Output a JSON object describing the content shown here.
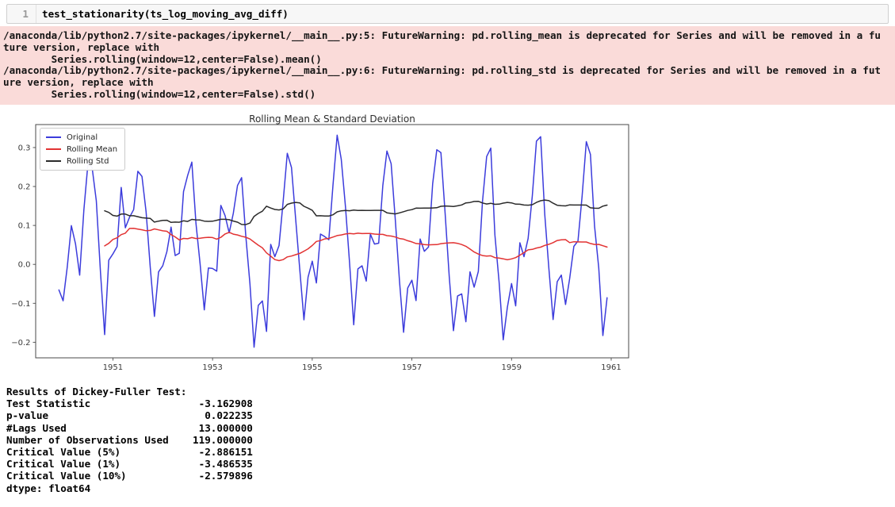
{
  "notebook": {
    "cell": {
      "line_number": "1",
      "code": "test_stationarity(ts_log_moving_avg_diff)"
    },
    "stderr_lines": [
      "/anaconda/lib/python2.7/site-packages/ipykernel/__main__.py:5: FutureWarning: pd.rolling_mean is deprecated for Series and will be removed in a fu",
      "ture version, replace with",
      "        Series.rolling(window=12,center=False).mean()",
      "/anaconda/lib/python2.7/site-packages/ipykernel/__main__.py:6: FutureWarning: pd.rolling_std is deprecated for Series and will be removed in a fut",
      "ure version, replace with",
      "        Series.rolling(window=12,center=False).std()"
    ],
    "result_lines": [
      "Results of Dickey-Fuller Test:",
      "Test Statistic                  -3.162908",
      "p-value                          0.022235",
      "#Lags Used                      13.000000",
      "Number of Observations Used    119.000000",
      "Critical Value (5%)             -2.886151",
      "Critical Value (1%)             -3.486535",
      "Critical Value (10%)            -2.579896",
      "dtype: float64"
    ]
  },
  "colors": {
    "stderr_bg": "#fadbd9",
    "cell_bg": "#f7f7f7",
    "cell_border": "#cfcfcf",
    "axis": "#4a4a4a",
    "tick_label": "#3a3a3a"
  },
  "chart_data": {
    "type": "line",
    "title": "Rolling Mean & Standard Deviation",
    "xlabel": "",
    "ylabel": "",
    "grid": false,
    "legend_position": "upper left",
    "x_start_year": 1949.916667,
    "x_step_years": 0.0833333,
    "xlim": [
      1949.45,
      1961.35
    ],
    "ylim": [
      -0.24,
      0.359
    ],
    "x_ticks": [
      1951,
      1953,
      1955,
      1957,
      1959,
      1961
    ],
    "x_tick_labels": [
      "1951",
      "1953",
      "1955",
      "1957",
      "1959",
      "1961"
    ],
    "y_ticks": [
      -0.2,
      -0.1,
      0.0,
      0.1,
      0.2,
      0.3
    ],
    "y_tick_labels": [
      "−0.2",
      "−0.1",
      "0.0",
      "0.1",
      "0.2",
      "0.3"
    ],
    "series": [
      {
        "name": "Original",
        "color": "#3c3cdc",
        "start_offset_months": 0,
        "values": [
          -0.0655,
          -0.0935,
          -0.0076,
          0.0994,
          0.0522,
          -0.0276,
          0.1398,
          0.2602,
          0.2486,
          0.1629,
          -0.0186,
          -0.1804,
          0.0108,
          0.0266,
          0.0459,
          0.1977,
          0.094,
          0.1211,
          0.1406,
          0.239,
          0.2258,
          0.1347,
          -0.009,
          -0.1336,
          -0.0194,
          -0.0035,
          0.0326,
          0.0956,
          0.0227,
          0.0285,
          0.1866,
          0.2281,
          0.2626,
          0.1054,
          0.0017,
          -0.1168,
          -0.0093,
          -0.0105,
          -0.0176,
          0.1513,
          0.1254,
          0.0808,
          0.1311,
          0.2025,
          0.2226,
          0.0744,
          -0.0501,
          -0.2128,
          -0.1054,
          -0.0939,
          -0.1722,
          0.0514,
          0.0197,
          0.0482,
          0.1619,
          0.2852,
          0.2488,
          0.118,
          -0.0119,
          -0.1425,
          -0.0328,
          0.0081,
          -0.0476,
          0.0779,
          0.0713,
          0.0631,
          0.2025,
          0.3316,
          0.2696,
          0.1478,
          0.0029,
          -0.155,
          -0.0117,
          -0.0036,
          -0.043,
          0.0776,
          0.0522,
          0.0545,
          0.2024,
          0.291,
          0.2586,
          0.1161,
          -0.0417,
          -0.1743,
          -0.0608,
          -0.0405,
          -0.0929,
          0.0652,
          0.0337,
          0.0444,
          0.2073,
          0.2944,
          0.2868,
          0.1312,
          -0.0314,
          -0.1703,
          -0.0813,
          -0.0758,
          -0.1472,
          -0.0191,
          -0.0585,
          -0.0182,
          0.1602,
          0.2768,
          0.2985,
          0.0753,
          -0.0457,
          -0.1937,
          -0.1105,
          -0.0492,
          -0.1066,
          0.0554,
          0.0197,
          0.0664,
          0.1763,
          0.3164,
          0.3278,
          0.128,
          -0.0113,
          -0.1415,
          -0.0445,
          -0.0275,
          -0.1031,
          -0.0365,
          0.0463,
          0.0602,
          0.1751,
          0.3152,
          0.2824,
          0.0982,
          -0.0092,
          -0.1828,
          -0.0858
        ]
      },
      {
        "name": "Rolling Mean",
        "color": "#e23333",
        "start_offset_months": 11,
        "values": [
          0.0475,
          0.0539,
          0.0639,
          0.0683,
          0.0765,
          0.08,
          0.0924,
          0.0925,
          0.0907,
          0.0888,
          0.0864,
          0.0872,
          0.0911,
          0.0886,
          0.0861,
          0.085,
          0.0765,
          0.0706,
          0.0628,
          0.0667,
          0.0658,
          0.0688,
          0.0664,
          0.0673,
          0.0687,
          0.0695,
          0.0689,
          0.0648,
          0.0694,
          0.078,
          0.0823,
          0.0777,
          0.0756,
          0.0722,
          0.0696,
          0.0653,
          0.0573,
          0.0493,
          0.0424,
          0.0295,
          0.0212,
          0.0123,
          0.0096,
          0.0122,
          0.0191,
          0.0213,
          0.0249,
          0.0281,
          0.0339,
          0.04,
          0.0485,
          0.0589,
          0.0611,
          0.0654,
          0.0666,
          0.07,
          0.0739,
          0.0756,
          0.0781,
          0.0793,
          0.0783,
          0.08,
          0.0791,
          0.0795,
          0.0794,
          0.0778,
          0.0771,
          0.0771,
          0.0737,
          0.0728,
          0.0702,
          0.0665,
          0.0648,
          0.0608,
          0.0577,
          0.0535,
          0.0525,
          0.0509,
          0.0501,
          0.0505,
          0.0508,
          0.0531,
          0.0544,
          0.0553,
          0.0556,
          0.0539,
          0.0509,
          0.0464,
          0.0394,
          0.0317,
          0.0265,
          0.0226,
          0.0211,
          0.0221,
          0.0174,
          0.0162,
          0.0143,
          0.0118,
          0.0141,
          0.0174,
          0.0237,
          0.0302,
          0.0372,
          0.0386,
          0.0419,
          0.0443,
          0.0487,
          0.0516,
          0.0559,
          0.0614,
          0.0632,
          0.0635,
          0.0559,
          0.0581,
          0.0576,
          0.0575,
          0.0574,
          0.0536,
          0.0511,
          0.0513,
          0.0478,
          0.0444
        ]
      },
      {
        "name": "Rolling Std",
        "color": "#2b2b2b",
        "start_offset_months": 11,
        "values": [
          0.1375,
          0.1334,
          0.1257,
          0.1239,
          0.1292,
          0.1291,
          0.1249,
          0.1249,
          0.1225,
          0.1199,
          0.1187,
          0.1179,
          0.1087,
          0.111,
          0.1129,
          0.1133,
          0.1078,
          0.1087,
          0.1081,
          0.1118,
          0.1103,
          0.1156,
          0.1144,
          0.1138,
          0.1111,
          0.1105,
          0.1109,
          0.1133,
          0.1158,
          0.1158,
          0.1148,
          0.1113,
          0.1083,
          0.1025,
          0.102,
          0.1061,
          0.1233,
          0.1309,
          0.1365,
          0.1494,
          0.1447,
          0.1409,
          0.1398,
          0.1425,
          0.154,
          0.1573,
          0.1592,
          0.1579,
          0.1492,
          0.1445,
          0.1387,
          0.1247,
          0.1248,
          0.1241,
          0.124,
          0.1273,
          0.1349,
          0.1375,
          0.1386,
          0.1378,
          0.1396,
          0.1383,
          0.1388,
          0.1384,
          0.1385,
          0.1387,
          0.1388,
          0.1388,
          0.1324,
          0.1309,
          0.1296,
          0.1323,
          0.1353,
          0.1385,
          0.1405,
          0.1444,
          0.1443,
          0.1444,
          0.1444,
          0.1449,
          0.1454,
          0.1492,
          0.1499,
          0.1493,
          0.1487,
          0.1503,
          0.1527,
          0.158,
          0.159,
          0.1615,
          0.162,
          0.1578,
          0.1551,
          0.1569,
          0.1542,
          0.1547,
          0.1573,
          0.1592,
          0.158,
          0.1547,
          0.1545,
          0.1524,
          0.1519,
          0.1532,
          0.1591,
          0.1635,
          0.1652,
          0.1636,
          0.1571,
          0.1518,
          0.1505,
          0.1502,
          0.1529,
          0.1525,
          0.1525,
          0.1524,
          0.1522,
          0.1453,
          0.1442,
          0.1441,
          0.1495,
          0.1523
        ]
      }
    ]
  }
}
